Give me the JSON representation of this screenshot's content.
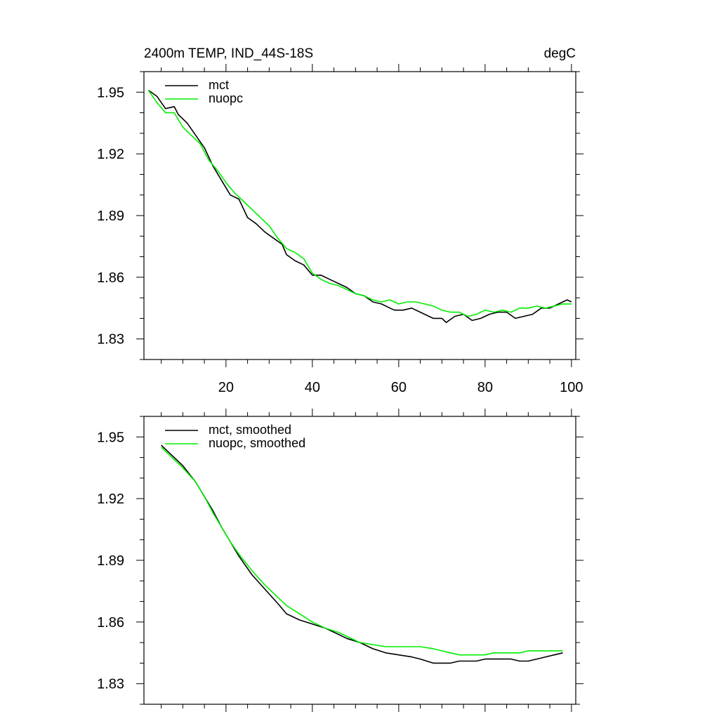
{
  "colors": {
    "mct": "#000000",
    "nuopc": "#00ee00",
    "axis": "#000000"
  },
  "chart_data": [
    {
      "type": "line",
      "title_left": "2400m TEMP, IND_44S-18S",
      "title_right": "degC",
      "xlabel": "",
      "ylabel": "",
      "xlim": [
        1,
        101
      ],
      "ylim": [
        1.82,
        1.96
      ],
      "xticks": [
        20,
        40,
        60,
        80,
        100
      ],
      "xticklabels": [
        "20",
        "40",
        "60",
        "80",
        "100"
      ],
      "yticks": [
        1.83,
        1.86,
        1.89,
        1.92,
        1.95
      ],
      "yticklabels": [
        "1.83",
        "1.86",
        "1.89",
        "1.92",
        "1.95"
      ],
      "legend_position": "top-left",
      "series": [
        {
          "name": "mct",
          "color": "#000000",
          "x": [
            2,
            4,
            6,
            8,
            9,
            11,
            13,
            15,
            17,
            19,
            21,
            23,
            25,
            27,
            29,
            31,
            33,
            34,
            36,
            38,
            40,
            42,
            44,
            46,
            48,
            50,
            52,
            54,
            56,
            58,
            59,
            61,
            63,
            65,
            67,
            68,
            70,
            71,
            73,
            75,
            77,
            79,
            81,
            83,
            85,
            87,
            89,
            91,
            93,
            95,
            97,
            99,
            100
          ],
          "y": [
            1.951,
            1.948,
            1.942,
            1.943,
            1.939,
            1.935,
            1.929,
            1.923,
            1.914,
            1.907,
            1.9,
            1.898,
            1.889,
            1.886,
            1.882,
            1.879,
            1.876,
            1.871,
            1.868,
            1.866,
            1.861,
            1.861,
            1.859,
            1.857,
            1.855,
            1.852,
            1.851,
            1.848,
            1.847,
            1.845,
            1.844,
            1.844,
            1.845,
            1.843,
            1.841,
            1.84,
            1.84,
            1.838,
            1.841,
            1.842,
            1.839,
            1.84,
            1.842,
            1.843,
            1.843,
            1.84,
            1.841,
            1.842,
            1.845,
            1.845,
            1.847,
            1.849,
            1.848
          ]
        },
        {
          "name": "nuopc",
          "color": "#00ee00",
          "x": [
            2,
            4,
            6,
            8,
            10,
            12,
            14,
            16,
            18,
            20,
            22,
            24,
            26,
            28,
            30,
            32,
            34,
            36,
            38,
            40,
            42,
            44,
            46,
            48,
            50,
            52,
            54,
            56,
            58,
            60,
            62,
            64,
            66,
            68,
            70,
            72,
            74,
            76,
            78,
            80,
            82,
            84,
            86,
            88,
            90,
            92,
            94,
            96,
            98,
            100
          ],
          "y": [
            1.951,
            1.945,
            1.94,
            1.94,
            1.933,
            1.929,
            1.925,
            1.917,
            1.912,
            1.906,
            1.901,
            1.897,
            1.893,
            1.889,
            1.885,
            1.879,
            1.874,
            1.872,
            1.869,
            1.862,
            1.859,
            1.857,
            1.856,
            1.854,
            1.852,
            1.851,
            1.849,
            1.848,
            1.849,
            1.847,
            1.848,
            1.848,
            1.847,
            1.846,
            1.844,
            1.843,
            1.843,
            1.841,
            1.842,
            1.844,
            1.843,
            1.844,
            1.843,
            1.845,
            1.845,
            1.846,
            1.845,
            1.846,
            1.847,
            1.847
          ]
        }
      ]
    },
    {
      "type": "line",
      "xlim": [
        1,
        101
      ],
      "ylim": [
        1.82,
        1.96
      ],
      "xticks": [
        20,
        40,
        60,
        80,
        100
      ],
      "xticklabels": [],
      "yticks": [
        1.83,
        1.86,
        1.89,
        1.92,
        1.95
      ],
      "yticklabels": [
        "1.83",
        "1.86",
        "1.89",
        "1.92",
        "1.95"
      ],
      "legend_position": "top-left",
      "series": [
        {
          "name": "mct, smoothed",
          "color": "#000000",
          "x": [
            5,
            8,
            10,
            13,
            15,
            17,
            19,
            21,
            23,
            26,
            29,
            32,
            34,
            37,
            40,
            43,
            46,
            48,
            51,
            54,
            57,
            60,
            63,
            65,
            68,
            70,
            72,
            74,
            76,
            78,
            80,
            82,
            84,
            86,
            88,
            90,
            92,
            94,
            96,
            98
          ],
          "y": [
            1.946,
            1.94,
            1.936,
            1.928,
            1.921,
            1.914,
            1.906,
            1.899,
            1.892,
            1.883,
            1.876,
            1.869,
            1.864,
            1.861,
            1.859,
            1.857,
            1.854,
            1.852,
            1.85,
            1.847,
            1.845,
            1.844,
            1.843,
            1.842,
            1.84,
            1.84,
            1.84,
            1.841,
            1.841,
            1.841,
            1.842,
            1.842,
            1.842,
            1.842,
            1.841,
            1.841,
            1.842,
            1.843,
            1.844,
            1.845
          ]
        },
        {
          "name": "nuopc, smoothed",
          "color": "#00ee00",
          "x": [
            5,
            8,
            10,
            13,
            15,
            17,
            19,
            21,
            23,
            26,
            29,
            32,
            34,
            37,
            40,
            43,
            46,
            48,
            51,
            54,
            57,
            60,
            63,
            65,
            68,
            70,
            72,
            74,
            76,
            78,
            80,
            82,
            84,
            86,
            88,
            90,
            92,
            94,
            96,
            98
          ],
          "y": [
            1.945,
            1.939,
            1.935,
            1.928,
            1.921,
            1.913,
            1.906,
            1.899,
            1.893,
            1.885,
            1.878,
            1.872,
            1.868,
            1.864,
            1.86,
            1.857,
            1.855,
            1.853,
            1.85,
            1.849,
            1.848,
            1.848,
            1.848,
            1.848,
            1.847,
            1.846,
            1.845,
            1.844,
            1.844,
            1.844,
            1.844,
            1.845,
            1.845,
            1.845,
            1.845,
            1.846,
            1.846,
            1.846,
            1.846,
            1.846
          ]
        }
      ]
    }
  ]
}
